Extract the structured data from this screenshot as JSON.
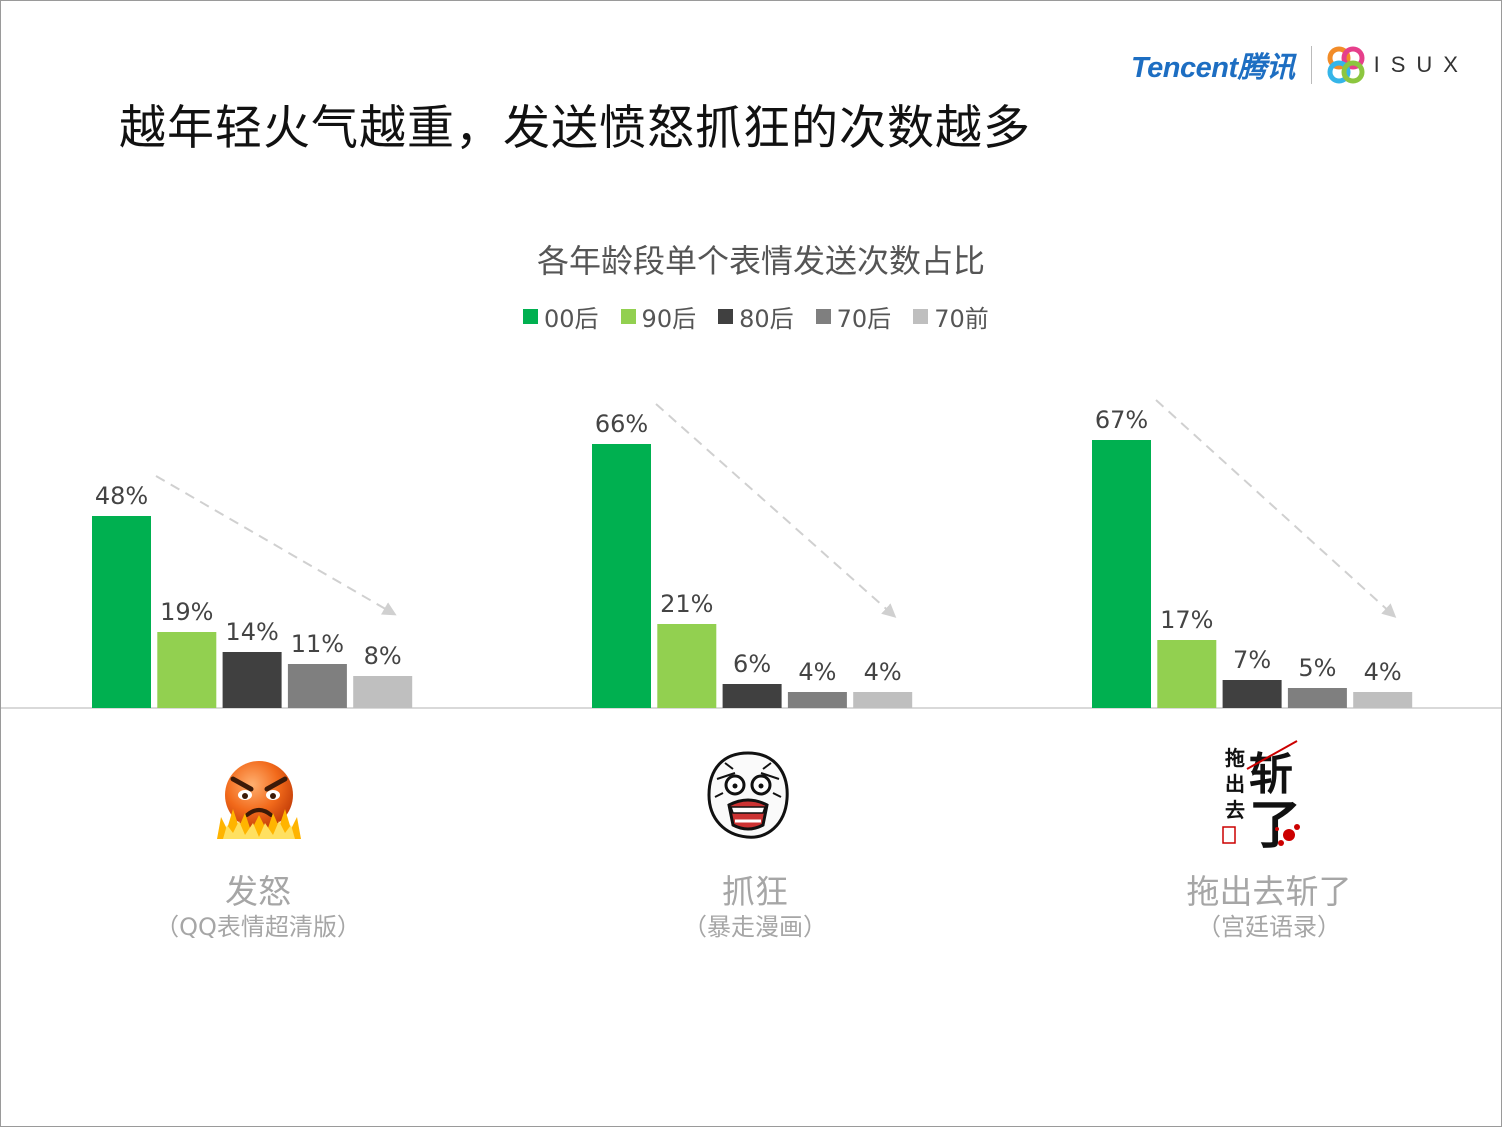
{
  "slide_title": "越年轻火气越重，发送愤怒抓狂的次数越多",
  "logo": {
    "tencent": "Tencent腾讯",
    "isux": "ISUX"
  },
  "chart_data": {
    "type": "bar",
    "title": "各年龄段单个表情发送次数占比",
    "categories": [
      "发怒",
      "抓狂",
      "拖出去斩了"
    ],
    "category_subtitles": [
      "（QQ表情超清版）",
      "（暴走漫画）",
      "（宫廷语录）"
    ],
    "series": [
      {
        "name": "00后",
        "color": "#00b050",
        "values": [
          48,
          66,
          67
        ]
      },
      {
        "name": "90后",
        "color": "#92d050",
        "values": [
          19,
          21,
          17
        ]
      },
      {
        "name": "80后",
        "color": "#404040",
        "values": [
          14,
          6,
          7
        ]
      },
      {
        "name": "70后",
        "color": "#7f7f7f",
        "values": [
          11,
          4,
          5
        ]
      },
      {
        "name": "70前",
        "color": "#bfbfbf",
        "values": [
          8,
          4,
          4
        ]
      }
    ],
    "value_suffix": "%",
    "ylim": [
      0,
      70
    ],
    "legend_position": "top",
    "grid": false,
    "trend_arrows": true
  },
  "emoji_icons": [
    "angry-fire-face-icon",
    "rage-comic-face-icon",
    "calligraphy-execute-icon"
  ]
}
